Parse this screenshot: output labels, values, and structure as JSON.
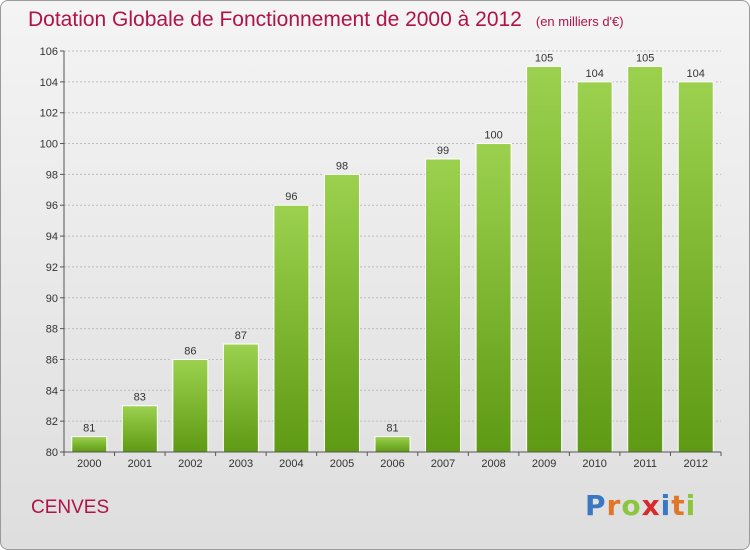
{
  "header": {
    "title": "Dotation Globale de Fonctionnement de 2000 à 2012",
    "subtitle": "(en milliers d'€)"
  },
  "footer": {
    "commune": "CENVES",
    "brand_letters": [
      "P",
      "r",
      "o",
      "x",
      "i",
      "t",
      "i"
    ],
    "brand_colors": [
      "#3a78c4",
      "#e0762a",
      "#8cc63f",
      "#d72a2a",
      "#3a78c4",
      "#e0762a",
      "#8cc63f"
    ]
  },
  "chart_data": {
    "type": "bar",
    "title": "Dotation Globale de Fonctionnement de 2000 à 2012",
    "subtitle": "(en milliers d'€)",
    "categories": [
      "2000",
      "2001",
      "2002",
      "2003",
      "2004",
      "2005",
      "2006",
      "2007",
      "2008",
      "2009",
      "2010",
      "2011",
      "2012"
    ],
    "values": [
      81,
      83,
      86,
      87,
      96,
      98,
      81,
      99,
      100,
      105,
      104,
      105,
      104
    ],
    "ylim": [
      80,
      106
    ],
    "yticks": [
      80,
      82,
      84,
      86,
      88,
      90,
      92,
      94,
      96,
      98,
      100,
      102,
      104,
      106
    ],
    "grid": true,
    "bar_color_light": "#9bd14e",
    "bar_color_dark": "#5f9a14"
  }
}
